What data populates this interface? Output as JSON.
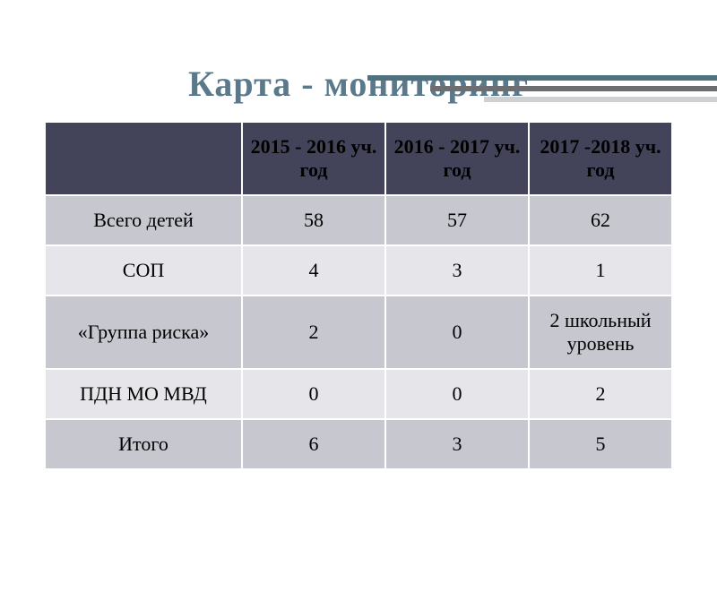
{
  "title": "Карта - мониторинг",
  "colors": {
    "title": "#5a7a8c",
    "bar1": "#50727f",
    "bar2": "#6d6e72",
    "bar3": "#cfd0d2",
    "th_bg": "#434459",
    "row_even": "#c6c7cf",
    "row_odd": "#e6e6ea"
  },
  "table": {
    "columns": [
      "",
      "2015 - 2016 уч. год",
      "2016 - 2017 уч. год",
      "2017 -2018 уч. год"
    ],
    "rows": [
      {
        "label": "Всего детей",
        "c1": "58",
        "c2": "57",
        "c3": "62"
      },
      {
        "label": "СОП",
        "c1": "4",
        "c2": "3",
        "c3": "1"
      },
      {
        "label": "«Группа риска»",
        "c1": "2",
        "c2": "0",
        "c3": "2 школьный уровень"
      },
      {
        "label": "ПДН МО МВД",
        "c1": "0",
        "c2": "0",
        "c3": "2"
      },
      {
        "label": "Итого",
        "c1": "6",
        "c2": "3",
        "c3": "5"
      }
    ]
  }
}
